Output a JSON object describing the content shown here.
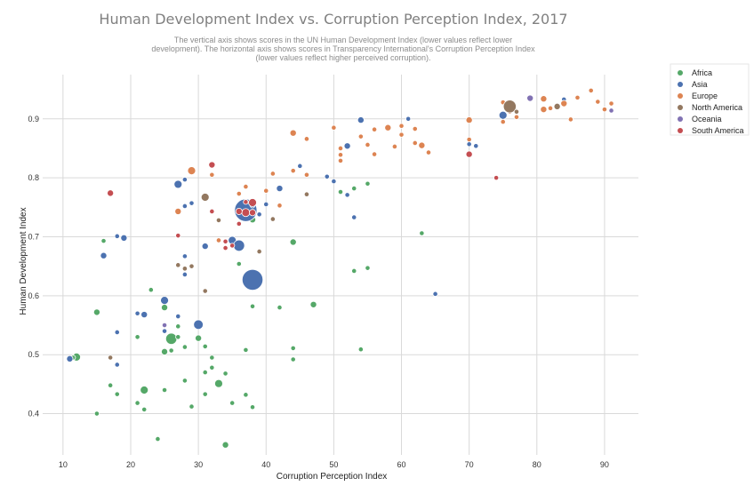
{
  "chart_data": {
    "type": "scatter",
    "title": "Human Development Index vs. Corruption Perception Index, 2017",
    "subtitle_lines": [
      "The vertical axis shows scores in the UN Human Development Index (lower values reflect lower",
      "development). The horizontal axis shows scores in Transparency International's Corruption Perception Index",
      "(lower values reflect higher perceived corruption)."
    ],
    "xlabel": "Corruption Perception Index",
    "ylabel": "Human Development Index",
    "xlim": [
      7,
      95
    ],
    "ylim": [
      0.33,
      0.975
    ],
    "xticks": [
      10,
      20,
      30,
      40,
      50,
      60,
      70,
      80,
      90
    ],
    "yticks": [
      0.4,
      0.5,
      0.6,
      0.7,
      0.8,
      0.9
    ],
    "xtick_labels": [
      "10",
      "20",
      "30",
      "40",
      "50",
      "60",
      "70",
      "80",
      "90"
    ],
    "ytick_labels": [
      "0.4",
      "0.5",
      "0.6",
      "0.7",
      "0.8",
      "0.9"
    ],
    "grid": true,
    "legend_position": "top-right, outside plot",
    "point_size_note": "marker size varies by point",
    "series": [
      {
        "name": "Africa",
        "color": "#55a868",
        "points": [
          [
            12,
            0.496,
            5
          ],
          [
            11.5,
            0.495,
            3
          ],
          [
            15,
            0.572,
            4
          ],
          [
            15,
            0.4,
            3
          ],
          [
            16,
            0.693,
            3
          ],
          [
            17,
            0.448,
            3
          ],
          [
            18,
            0.433,
            3
          ],
          [
            21,
            0.418,
            3
          ],
          [
            21,
            0.53,
            3
          ],
          [
            22,
            0.44,
            5
          ],
          [
            22,
            0.407,
            3
          ],
          [
            23,
            0.61,
            3
          ],
          [
            24,
            0.357,
            3
          ],
          [
            25,
            0.505,
            4
          ],
          [
            25,
            0.58,
            4
          ],
          [
            25,
            0.44,
            3
          ],
          [
            26,
            0.527,
            7
          ],
          [
            26,
            0.507,
            3
          ],
          [
            27,
            0.548,
            3
          ],
          [
            27,
            0.53,
            3
          ],
          [
            28,
            0.513,
            3
          ],
          [
            28,
            0.456,
            3
          ],
          [
            29,
            0.412,
            3
          ],
          [
            30,
            0.528,
            4
          ],
          [
            31,
            0.47,
            3
          ],
          [
            31,
            0.433,
            3
          ],
          [
            31,
            0.514,
            3
          ],
          [
            32,
            0.478,
            3
          ],
          [
            32,
            0.495,
            3
          ],
          [
            33,
            0.451,
            5
          ],
          [
            34,
            0.347,
            4
          ],
          [
            34,
            0.468,
            3
          ],
          [
            35,
            0.418,
            3
          ],
          [
            36,
            0.654,
            3
          ],
          [
            37,
            0.508,
            3
          ],
          [
            37,
            0.432,
            3
          ],
          [
            38,
            0.729,
            4
          ],
          [
            38,
            0.582,
            3
          ],
          [
            38,
            0.411,
            3
          ],
          [
            42,
            0.58,
            3
          ],
          [
            44,
            0.691,
            4
          ],
          [
            44,
            0.511,
            3
          ],
          [
            44,
            0.492,
            3
          ],
          [
            47,
            0.585,
            4
          ],
          [
            51,
            0.776,
            3
          ],
          [
            53,
            0.642,
            3
          ],
          [
            53,
            0.782,
            3
          ],
          [
            54,
            0.509,
            3
          ],
          [
            55,
            0.647,
            3
          ],
          [
            55,
            0.79,
            3
          ],
          [
            63,
            0.706,
            3
          ]
        ]
      },
      {
        "name": "Asia",
        "color": "#4c72b0",
        "points": [
          [
            11,
            0.493,
            4
          ],
          [
            16,
            0.668,
            4
          ],
          [
            18,
            0.701,
            3
          ],
          [
            19,
            0.698,
            4
          ],
          [
            18,
            0.538,
            3
          ],
          [
            18,
            0.483,
            3
          ],
          [
            21,
            0.57,
            3
          ],
          [
            22,
            0.568,
            4
          ],
          [
            25,
            0.592,
            5
          ],
          [
            25,
            0.54,
            3
          ],
          [
            27,
            0.789,
            5
          ],
          [
            27,
            0.565,
            3
          ],
          [
            28,
            0.797,
            3
          ],
          [
            28,
            0.752,
            3
          ],
          [
            28,
            0.667,
            3
          ],
          [
            28,
            0.636,
            3
          ],
          [
            29,
            0.757,
            3
          ],
          [
            30,
            0.551,
            6
          ],
          [
            31,
            0.684,
            4
          ],
          [
            35,
            0.694,
            5
          ],
          [
            36,
            0.685,
            7
          ],
          [
            37,
            0.745,
            14
          ],
          [
            38,
            0.627,
            13
          ],
          [
            38,
            0.753,
            3
          ],
          [
            39,
            0.738,
            3
          ],
          [
            40,
            0.755,
            3
          ],
          [
            42,
            0.782,
            4
          ],
          [
            45,
            0.82,
            3
          ],
          [
            49,
            0.802,
            3
          ],
          [
            50,
            0.794,
            3
          ],
          [
            52,
            0.771,
            3
          ],
          [
            53,
            0.733,
            3
          ],
          [
            52,
            0.854,
            4
          ],
          [
            54,
            0.898,
            4
          ],
          [
            61,
            0.9,
            3
          ],
          [
            65,
            0.603,
            3
          ],
          [
            70,
            0.857,
            3
          ],
          [
            71,
            0.854,
            3
          ],
          [
            75,
            0.906,
            5
          ],
          [
            84,
            0.933,
            3
          ]
        ]
      },
      {
        "name": "Europe",
        "color": "#dd8452",
        "points": [
          [
            27,
            0.743,
            4
          ],
          [
            29,
            0.812,
            5
          ],
          [
            32,
            0.805,
            3
          ],
          [
            33,
            0.694,
            3
          ],
          [
            36,
            0.773,
            3
          ],
          [
            37,
            0.785,
            3
          ],
          [
            38,
            0.757,
            3
          ],
          [
            40,
            0.778,
            3
          ],
          [
            41,
            0.807,
            3
          ],
          [
            42,
            0.753,
            3
          ],
          [
            44,
            0.876,
            4
          ],
          [
            44,
            0.812,
            3
          ],
          [
            46,
            0.866,
            3
          ],
          [
            46,
            0.805,
            3
          ],
          [
            50,
            0.885,
            3
          ],
          [
            51,
            0.85,
            3
          ],
          [
            51,
            0.829,
            3
          ],
          [
            51,
            0.839,
            3
          ],
          [
            54,
            0.87,
            3
          ],
          [
            55,
            0.856,
            3
          ],
          [
            56,
            0.882,
            3
          ],
          [
            56,
            0.84,
            3
          ],
          [
            58,
            0.885,
            4
          ],
          [
            59,
            0.853,
            3
          ],
          [
            60,
            0.873,
            3
          ],
          [
            60,
            0.888,
            3
          ],
          [
            62,
            0.883,
            3
          ],
          [
            62,
            0.859,
            3
          ],
          [
            63,
            0.855,
            4
          ],
          [
            64,
            0.843,
            3
          ],
          [
            70,
            0.898,
            4
          ],
          [
            70,
            0.865,
            3
          ],
          [
            75,
            0.928,
            3
          ],
          [
            76,
            0.912,
            3
          ],
          [
            77,
            0.903,
            3
          ],
          [
            81,
            0.916,
            4
          ],
          [
            81,
            0.934,
            4
          ],
          [
            82,
            0.918,
            3
          ],
          [
            84,
            0.926,
            4
          ],
          [
            85,
            0.899,
            3
          ],
          [
            86,
            0.936,
            3
          ],
          [
            88,
            0.948,
            3
          ],
          [
            89,
            0.929,
            3
          ],
          [
            90,
            0.916,
            3
          ],
          [
            91,
            0.926,
            3
          ],
          [
            75,
            0.895,
            3
          ]
        ]
      },
      {
        "name": "North America",
        "color": "#937860",
        "points": [
          [
            17,
            0.495,
            3
          ],
          [
            27,
            0.652,
            3
          ],
          [
            28,
            0.646,
            3
          ],
          [
            29,
            0.65,
            3
          ],
          [
            31,
            0.767,
            5
          ],
          [
            31,
            0.608,
            3
          ],
          [
            33,
            0.728,
            3
          ],
          [
            39,
            0.675,
            3
          ],
          [
            41,
            0.73,
            3
          ],
          [
            46,
            0.772,
            3
          ],
          [
            76,
            0.921,
            8
          ],
          [
            77,
            0.912,
            3
          ],
          [
            83,
            0.921,
            4
          ]
        ]
      },
      {
        "name": "Oceania",
        "color": "#8172b3",
        "points": [
          [
            25,
            0.55,
            3
          ],
          [
            79,
            0.935,
            4
          ],
          [
            91,
            0.914,
            3
          ]
        ]
      },
      {
        "name": "South America",
        "color": "#c44e52",
        "points": [
          [
            17,
            0.774,
            4
          ],
          [
            27,
            0.702,
            3
          ],
          [
            32,
            0.822,
            4
          ],
          [
            32,
            0.743,
            3
          ],
          [
            34,
            0.692,
            3
          ],
          [
            34,
            0.681,
            3
          ],
          [
            35,
            0.685,
            3
          ],
          [
            36,
            0.722,
            3
          ],
          [
            37,
            0.759,
            3
          ],
          [
            37,
            0.741,
            5
          ],
          [
            38,
            0.758,
            5
          ],
          [
            36,
            0.743,
            4
          ],
          [
            38,
            0.741,
            4
          ],
          [
            70,
            0.84,
            4
          ],
          [
            74,
            0.8,
            3
          ]
        ]
      }
    ]
  }
}
